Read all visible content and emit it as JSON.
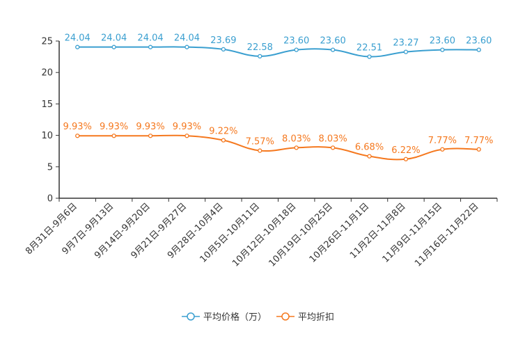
{
  "chart_data": {
    "type": "line",
    "title": "",
    "xlabel": "",
    "ylabel": "",
    "ylim": [
      0,
      25
    ],
    "yticks": [
      0,
      5,
      10,
      15,
      20,
      25
    ],
    "categories": [
      "8月31日-9月6日",
      "9月7日-9月13日",
      "9月14日-9月20日",
      "9月21日-9月27日",
      "9月28日-10月4日",
      "10月5日-10月11日",
      "10月12日-10月18日",
      "10月19日-10月25日",
      "10月26日-11月1日",
      "11月2日-11月8日",
      "11月9日-11月15日",
      "11月16日-11月22日"
    ],
    "series": [
      {
        "name": "平均价格（万）",
        "color": "#3a9fd0",
        "values": [
          24.04,
          24.04,
          24.04,
          24.04,
          23.69,
          22.58,
          23.6,
          23.6,
          22.51,
          23.27,
          23.6,
          23.6
        ],
        "labels": [
          "24.04",
          "24.04",
          "24.04",
          "24.04",
          "23.69",
          "22.58",
          "23.60",
          "23.60",
          "22.51",
          "23.27",
          "23.60",
          "23.60"
        ]
      },
      {
        "name": "平均折扣",
        "color": "#f5781e",
        "values": [
          9.93,
          9.93,
          9.93,
          9.93,
          9.22,
          7.57,
          8.03,
          8.03,
          6.68,
          6.22,
          7.77,
          7.77
        ],
        "labels": [
          "9.93%",
          "9.93%",
          "9.93%",
          "9.93%",
          "9.22%",
          "7.57%",
          "8.03%",
          "8.03%",
          "6.68%",
          "6.22%",
          "7.77%",
          "7.77%"
        ]
      }
    ],
    "legend_position": "bottom-center",
    "grid": false
  }
}
